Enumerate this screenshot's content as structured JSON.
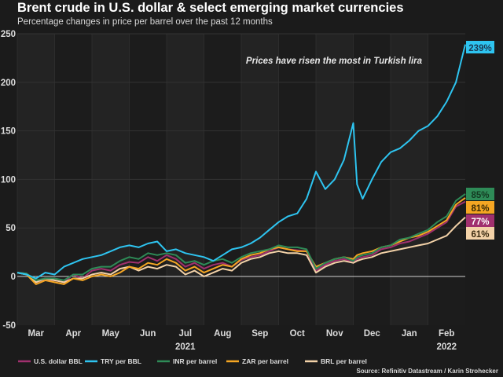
{
  "title": "Brent crude in U.S. dollar & select emerging market currencies",
  "subtitle": "Percentage changes in price per barrel over the past 12 months",
  "source": "Source: Refinitiv Datastream / Karin Strohecker",
  "chart_data": {
    "type": "line",
    "title": "Brent crude in U.S. dollar & select emerging market currencies",
    "subtitle": "Percentage changes in price per barrel over the past 12 months",
    "xlabel": "",
    "ylabel": "",
    "ylim": [
      -50,
      250
    ],
    "yticks": [
      250,
      200,
      150,
      100,
      50,
      0,
      -50
    ],
    "xticks": [
      "Mar",
      "Apr",
      "May",
      "Jun",
      "Jul",
      "Aug",
      "Sep",
      "Oct",
      "Nov",
      "Dec",
      "Jan",
      "Feb"
    ],
    "year_labels": [
      {
        "label": "2021",
        "under": "Jul"
      },
      {
        "label": "2022",
        "under": "Feb"
      }
    ],
    "grid": true,
    "legend_position": "bottom",
    "annotation": "Prices have risen the most in Turkish lira",
    "x_months": [
      0,
      0.25,
      0.5,
      0.75,
      1,
      1.25,
      1.5,
      1.75,
      2,
      2.25,
      2.5,
      2.75,
      3,
      3.25,
      3.5,
      3.75,
      4,
      4.25,
      4.5,
      4.75,
      5,
      5.25,
      5.5,
      5.75,
      6,
      6.25,
      6.5,
      6.75,
      7,
      7.25,
      7.5,
      7.75,
      8,
      8.25,
      8.5,
      8.75,
      9,
      9.1,
      9.25,
      9.5,
      9.75,
      10,
      10.25,
      10.5,
      10.75,
      11,
      11.25,
      11.5,
      11.75,
      12
    ],
    "series": [
      {
        "name": "U.S. dollar BBL",
        "color": "#a0306e",
        "end_label": "77%",
        "values": [
          4,
          3,
          -6,
          -3,
          -4,
          -6,
          2,
          -2,
          6,
          8,
          6,
          12,
          15,
          14,
          20,
          16,
          22,
          18,
          10,
          14,
          8,
          12,
          14,
          10,
          17,
          20,
          22,
          26,
          30,
          28,
          27,
          26,
          6,
          12,
          16,
          18,
          14,
          18,
          20,
          22,
          28,
          30,
          34,
          36,
          40,
          44,
          50,
          56,
          72,
          77
        ]
      },
      {
        "name": "TRY per BBL",
        "color": "#2ec4f0",
        "end_label": "239%",
        "values": [
          4,
          2,
          -2,
          4,
          2,
          10,
          14,
          18,
          20,
          22,
          26,
          30,
          32,
          30,
          34,
          36,
          26,
          28,
          24,
          22,
          20,
          16,
          22,
          28,
          30,
          34,
          40,
          48,
          56,
          62,
          65,
          80,
          108,
          90,
          100,
          120,
          158,
          95,
          80,
          100,
          118,
          128,
          132,
          140,
          150,
          155,
          165,
          180,
          200,
          239
        ]
      },
      {
        "name": "INR per barrel",
        "color": "#2e8b57",
        "end_label": "85%",
        "values": [
          4,
          3,
          -4,
          -2,
          -2,
          -4,
          2,
          2,
          8,
          10,
          10,
          16,
          20,
          18,
          24,
          22,
          24,
          22,
          14,
          16,
          12,
          16,
          18,
          14,
          20,
          24,
          26,
          28,
          32,
          30,
          30,
          28,
          8,
          14,
          18,
          20,
          16,
          20,
          22,
          24,
          30,
          32,
          38,
          40,
          44,
          48,
          56,
          62,
          78,
          85
        ]
      },
      {
        "name": "ZAR per barrel",
        "color": "#f5a623",
        "end_label": "81%",
        "values": [
          4,
          2,
          -8,
          -4,
          -6,
          -8,
          -2,
          -4,
          0,
          2,
          0,
          4,
          10,
          8,
          14,
          12,
          18,
          14,
          6,
          10,
          4,
          8,
          12,
          10,
          18,
          22,
          24,
          28,
          30,
          28,
          26,
          26,
          10,
          14,
          18,
          20,
          18,
          22,
          24,
          26,
          30,
          32,
          36,
          40,
          42,
          46,
          52,
          58,
          74,
          81
        ]
      },
      {
        "name": "BRL per barrel",
        "color": "#f3d2a8",
        "end_label": "61%",
        "values": [
          4,
          2,
          -6,
          -2,
          -4,
          -6,
          -2,
          -2,
          2,
          4,
          2,
          8,
          10,
          6,
          10,
          8,
          12,
          10,
          2,
          6,
          0,
          4,
          8,
          6,
          14,
          18,
          20,
          24,
          26,
          24,
          24,
          22,
          4,
          10,
          14,
          16,
          14,
          16,
          18,
          20,
          24,
          26,
          28,
          30,
          32,
          34,
          38,
          42,
          52,
          61
        ]
      }
    ]
  }
}
